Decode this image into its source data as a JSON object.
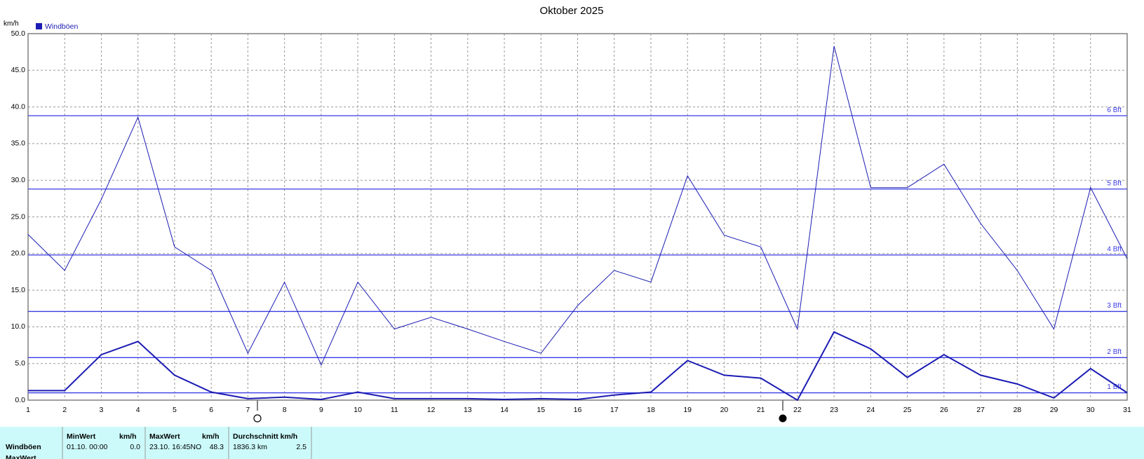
{
  "chart_data": {
    "type": "line",
    "title": "Oktober 2025",
    "y_label": "km/h",
    "x": [
      1,
      2,
      3,
      4,
      5,
      6,
      7,
      8,
      9,
      10,
      11,
      12,
      13,
      14,
      15,
      16,
      17,
      18,
      19,
      20,
      21,
      22,
      23,
      24,
      25,
      26,
      27,
      28,
      29,
      30,
      31
    ],
    "xlim": [
      1,
      31
    ],
    "xticks": [
      1,
      2,
      3,
      4,
      5,
      6,
      7,
      8,
      9,
      10,
      11,
      12,
      13,
      14,
      15,
      16,
      17,
      18,
      19,
      20,
      21,
      22,
      23,
      24,
      25,
      26,
      27,
      28,
      29,
      30,
      31
    ],
    "ylim": [
      0,
      50
    ],
    "yticks": [
      {
        "value": 0,
        "label": "0.0"
      },
      {
        "value": 5,
        "label": "5.0"
      },
      {
        "value": 10,
        "label": "10.0"
      },
      {
        "value": 15,
        "label": "15.0"
      },
      {
        "value": 20,
        "label": "20.0"
      },
      {
        "value": 25,
        "label": "25.0"
      },
      {
        "value": 30,
        "label": "30.0"
      },
      {
        "value": 35,
        "label": "35.0"
      },
      {
        "value": 40,
        "label": "40.0"
      },
      {
        "value": 45,
        "label": "45.0"
      },
      {
        "value": 50,
        "label": "50.0"
      }
    ],
    "grid": true,
    "legend": "top-left",
    "series": [
      {
        "name": "Windböen",
        "color": "#1c1cb4",
        "line_width": 1,
        "values": [
          22.6,
          17.7,
          27.4,
          38.6,
          20.9,
          17.7,
          6.4,
          16.1,
          4.8,
          16.1,
          9.7,
          11.3,
          9.7,
          8.0,
          6.4,
          12.9,
          17.7,
          16.1,
          30.6,
          22.5,
          20.9,
          9.7,
          48.3,
          29.0,
          29.0,
          32.2,
          24.1,
          17.7,
          9.7,
          29.0,
          19.3
        ]
      },
      {
        "color": "#1c1cb4",
        "line_width": 2,
        "values": [
          1.3,
          1.3,
          6.2,
          8.0,
          3.4,
          1.1,
          0.2,
          0.4,
          0.1,
          1.1,
          0.2,
          0.2,
          0.2,
          0.1,
          0.2,
          0.1,
          0.7,
          1.1,
          5.4,
          3.4,
          3.0,
          0.0,
          9.3,
          7.0,
          3.1,
          6.2,
          3.4,
          2.2,
          0.3,
          4.3,
          1.0
        ]
      }
    ],
    "reference_lines": {
      "color": "#3a3ae6",
      "lines": [
        {
          "value": 1.0,
          "label": "1 Bft"
        },
        {
          "value": 5.8,
          "label": "2 Bft"
        },
        {
          "value": 12.1,
          "label": "3 Bft"
        },
        {
          "value": 19.8,
          "label": "4 Bft"
        },
        {
          "value": 28.8,
          "label": "5 Bft"
        },
        {
          "value": 38.8,
          "label": "6 Bft"
        }
      ]
    }
  },
  "table": {
    "header": [
      "MinWert",
      "km/h",
      "MaxWert",
      "km/h",
      "Durchschnitt km/h"
    ],
    "rows": [
      [
        "Windböen",
        "01.10.  00:00",
        "0.0",
        "23.10.  16:45NO",
        "48.3",
        "1836.3 km",
        "2.5"
      ],
      [
        "MaxWert"
      ]
    ]
  }
}
